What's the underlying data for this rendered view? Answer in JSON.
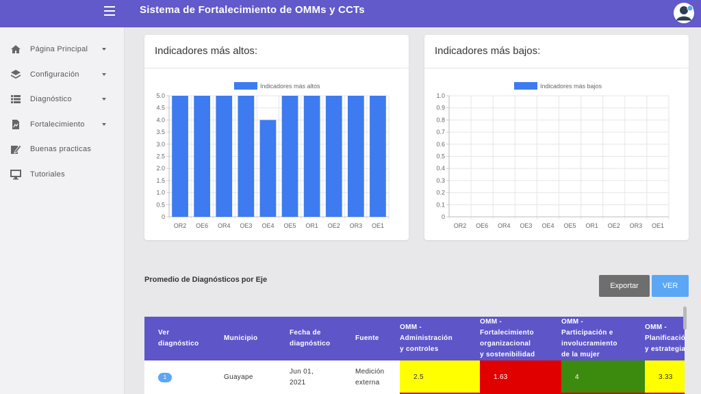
{
  "app": {
    "title": "Sistema de Fortalecimiento de OMMs y CCTs"
  },
  "sidebar": {
    "items": [
      {
        "label": "Página Principal",
        "icon": "home-icon",
        "has_caret": true
      },
      {
        "label": "Configuración",
        "icon": "layers-icon",
        "has_caret": true
      },
      {
        "label": "Diagnóstico",
        "icon": "list-icon",
        "has_caret": true
      },
      {
        "label": "Fortalecimiento",
        "icon": "document-icon",
        "has_caret": true
      },
      {
        "label": "Buenas practicas",
        "icon": "edit-icon",
        "has_caret": false
      },
      {
        "label": "Tutoriales",
        "icon": "monitor-icon",
        "has_caret": false
      }
    ]
  },
  "cards": {
    "high_title": "Indicadores más altos:",
    "low_title": "Indicadores más bajos:"
  },
  "chart_data": [
    {
      "type": "bar",
      "legend": "Indicadores más altos",
      "categories": [
        "OR2",
        "OE6",
        "OR4",
        "OE3",
        "OE4",
        "OE5",
        "OR1",
        "OE2",
        "OR3",
        "OE1"
      ],
      "values": [
        5,
        5,
        5,
        5,
        4,
        5,
        5,
        5,
        5,
        5
      ],
      "ylim": [
        0,
        5
      ],
      "yticks": [
        "0",
        "0.5",
        "1.0",
        "1.5",
        "2.0",
        "2.5",
        "3.0",
        "3.5",
        "4.0",
        "4.5",
        "5.0"
      ],
      "color": "#3e7bf0",
      "grid": true
    },
    {
      "type": "bar",
      "legend": "Indicadores más bajos",
      "categories": [
        "OR2",
        "OE6",
        "OR4",
        "OE3",
        "OE4",
        "OE5",
        "OR1",
        "OE2",
        "OR3",
        "OE1"
      ],
      "values": [
        0,
        0,
        0,
        0,
        0,
        0,
        0,
        0,
        0,
        0
      ],
      "ylim": [
        0,
        1
      ],
      "yticks": [
        "0",
        "0.1",
        "0.2",
        "0.3",
        "0.4",
        "0.5",
        "0.6",
        "0.7",
        "0.8",
        "0.9",
        "1.0"
      ],
      "color": "#3e7bf0",
      "grid": true
    }
  ],
  "section": {
    "title": "Promedio de Diagnósticos por Eje"
  },
  "buttons": {
    "export": "Exportar",
    "ver": "VER"
  },
  "table": {
    "headers": [
      [
        "Ver",
        "diagnóstico"
      ],
      [
        "Municipio"
      ],
      [
        "Fecha de",
        "diagnóstico"
      ],
      [
        "Fuente"
      ],
      [
        "OMM -",
        "Administración",
        "y controles"
      ],
      [
        "OMM -",
        "Fortalecimiento",
        "organizacional",
        "y sostenibilidad"
      ],
      [
        "OMM -",
        "Participación e",
        "involucramiento",
        "de la mujer"
      ],
      [
        "OMM -",
        "Planificación",
        "y estrategia"
      ]
    ],
    "rows": [
      {
        "ver": "1",
        "municipio": "Guayape",
        "fecha": [
          "Jun 01,",
          "2021"
        ],
        "fuente": [
          "Medición",
          "externa"
        ],
        "scores": [
          {
            "value": "2.5",
            "color": "#ffff00"
          },
          {
            "value": "1.63",
            "color": "#e10000"
          },
          {
            "value": "4",
            "color": "#3c8a0e"
          },
          {
            "value": "3.33",
            "color": "#ffff00"
          }
        ]
      }
    ]
  },
  "colors": {
    "accent": "#6259ca",
    "table_header": "#5d55c8",
    "button_blue": "#5ba7f5",
    "button_gray": "#6e6e6e"
  }
}
